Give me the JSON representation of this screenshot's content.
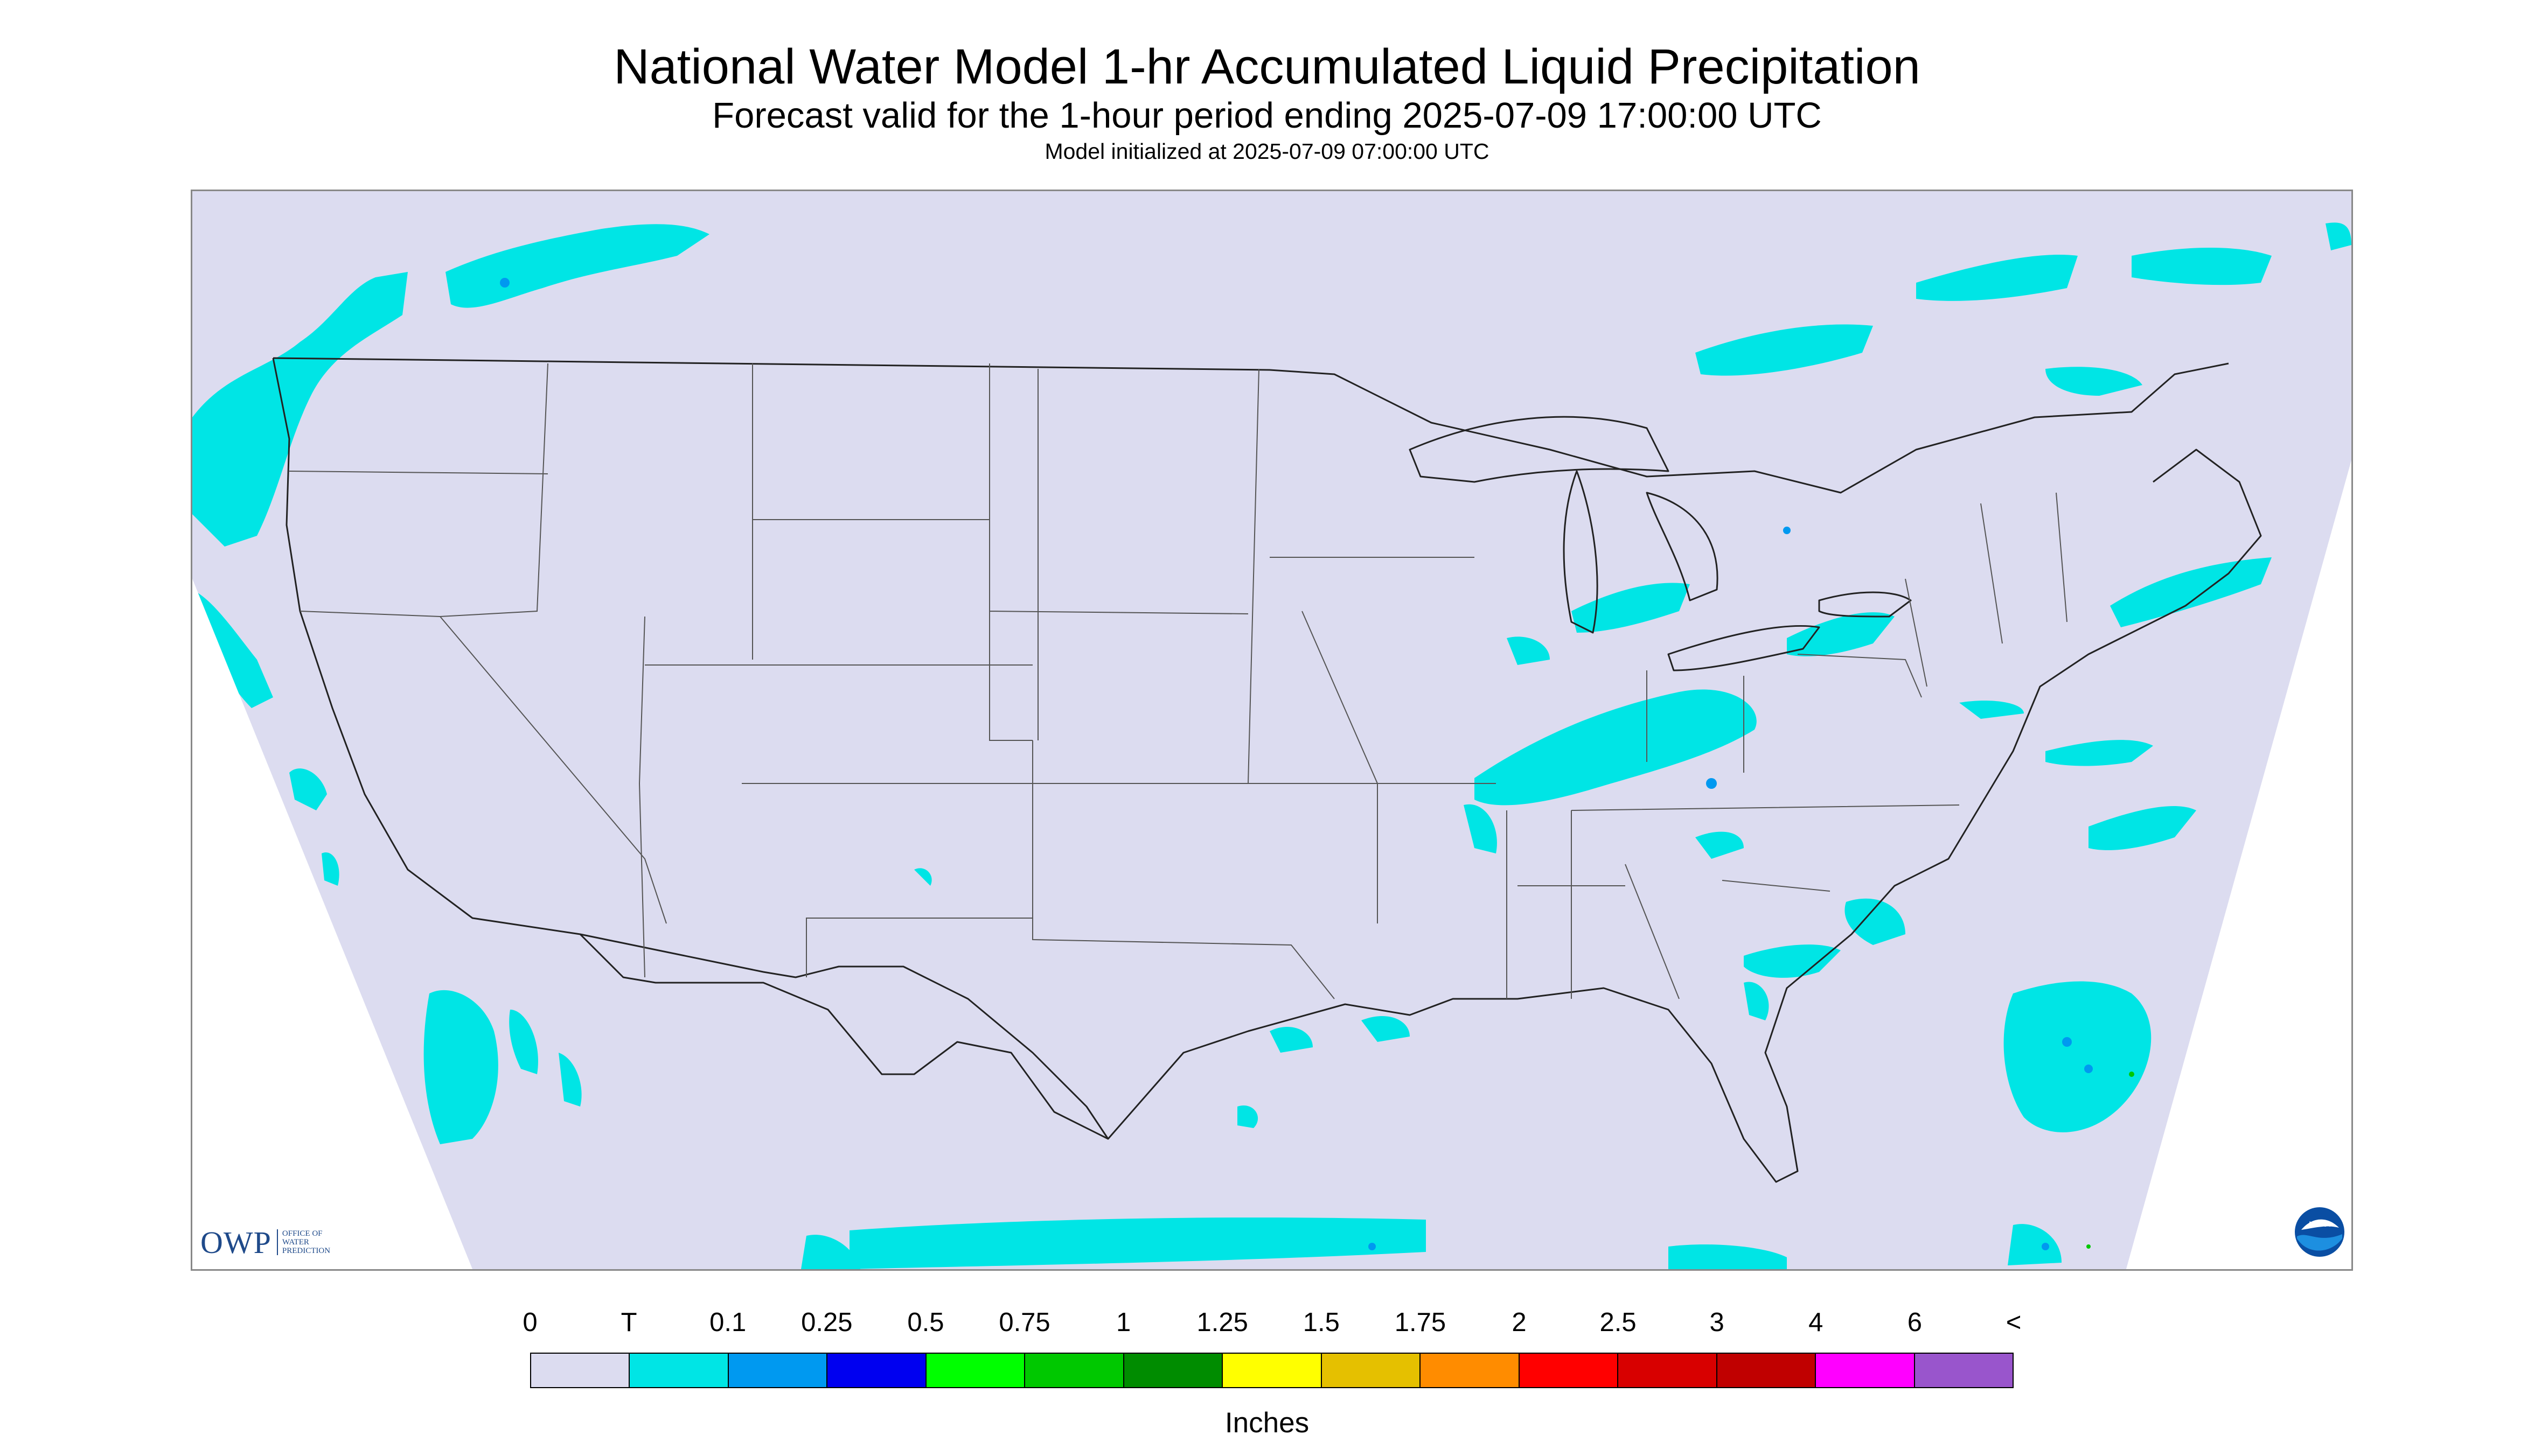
{
  "header": {
    "title": "National Water Model 1-hr Accumulated Liquid Precipitation",
    "subtitle": "Forecast valid for the 1-hour period ending 2025-07-09 17:00:00 UTC",
    "init": "Model initialized at 2025-07-09 07:00:00 UTC"
  },
  "logos": {
    "owp_text": "OWP",
    "owp_sub_1": "OFFICE OF",
    "owp_sub_2": "WATER",
    "owp_sub_3": "PREDICTION",
    "noaa_text": "NOAA"
  },
  "map": {
    "domain_color": "#dcdcf0",
    "outside_color": "#ffffff",
    "boundary_color": "#222222"
  },
  "legend": {
    "labels": [
      "0",
      "T",
      "0.1",
      "0.25",
      "0.5",
      "0.75",
      "1",
      "1.25",
      "1.5",
      "1.75",
      "2",
      "2.5",
      "3",
      "4",
      "6",
      "<"
    ],
    "colors": [
      "#dcdcf0",
      "#00e5e5",
      "#0099f0",
      "#0000f0",
      "#00ff00",
      "#00c800",
      "#008c00",
      "#ffff00",
      "#e5c000",
      "#ff8c00",
      "#ff0000",
      "#d80000",
      "#c00000",
      "#ff00ff",
      "#9955cc"
    ],
    "units": "Inches"
  }
}
